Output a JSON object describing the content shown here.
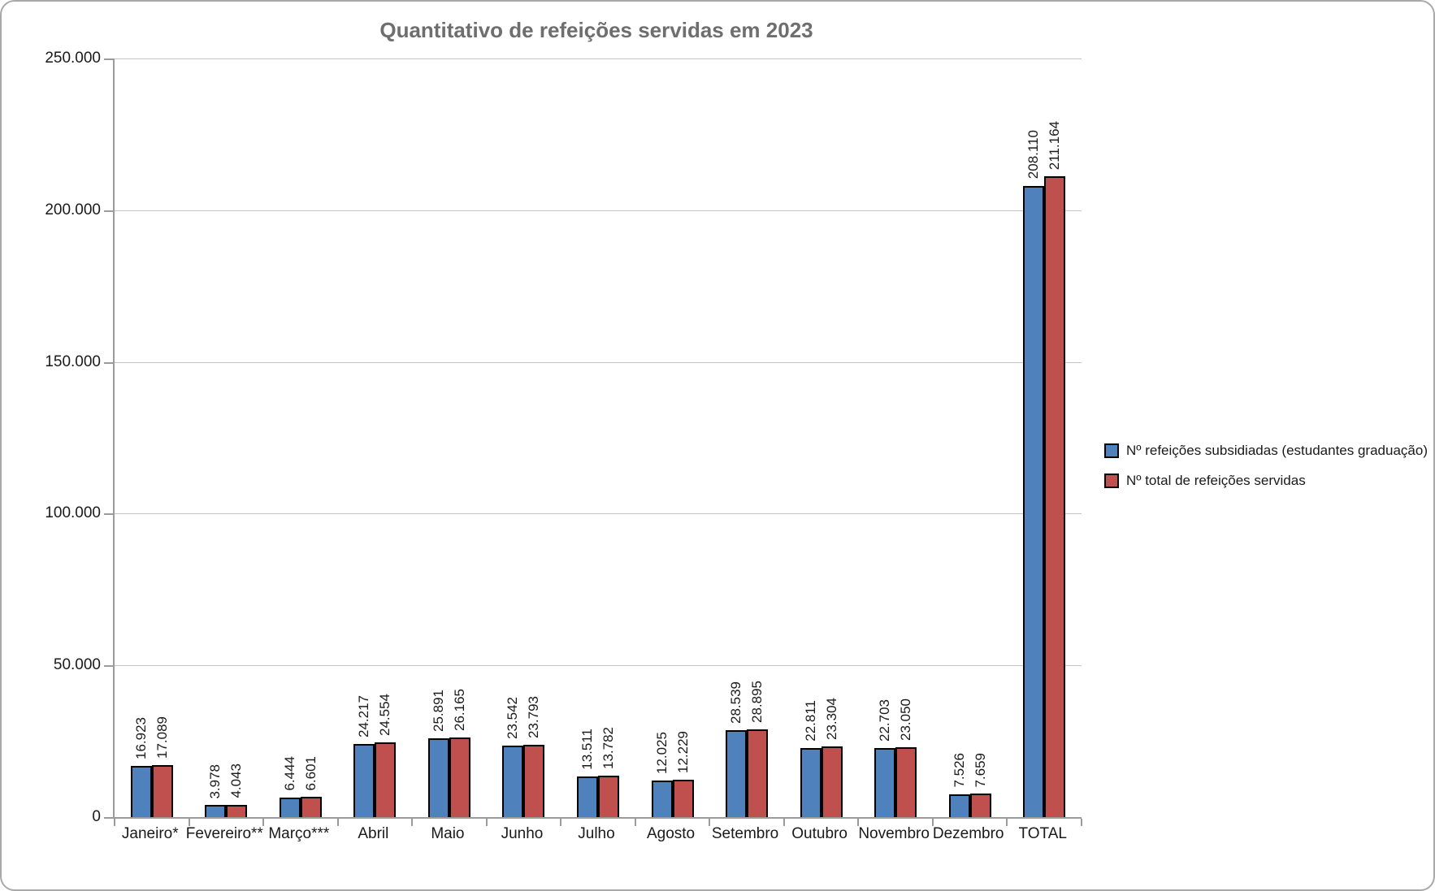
{
  "chart_data": {
    "type": "bar",
    "title": "Quantitativo de refeições servidas em 2023",
    "categories": [
      "Janeiro*",
      "Fevereiro**",
      "Março***",
      "Abril",
      "Maio",
      "Junho",
      "Julho",
      "Agosto",
      "Setembro",
      "Outubro",
      "Novembro",
      "Dezembro",
      "TOTAL"
    ],
    "series": [
      {
        "name": "Nº refeições subsidiadas (estudantes graduação)",
        "color": "#4F81BD",
        "values": [
          16923,
          3978,
          6444,
          24217,
          25891,
          23542,
          13511,
          12025,
          28539,
          22811,
          22703,
          7526,
          208110
        ],
        "labels": [
          "16.923",
          "3.978",
          "6.444",
          "24.217",
          "25.891",
          "23.542",
          "13.511",
          "12.025",
          "28.539",
          "22.811",
          "22.703",
          "7.526",
          "208.110"
        ]
      },
      {
        "name": "Nº total de refeições servidas",
        "color": "#C0504D",
        "values": [
          17089,
          4043,
          6601,
          24554,
          26165,
          23793,
          13782,
          12229,
          28895,
          23304,
          23050,
          7659,
          211164
        ],
        "labels": [
          "17.089",
          "4.043",
          "6.601",
          "24.554",
          "26.165",
          "23.793",
          "13.782",
          "12.229",
          "28.895",
          "23.304",
          "23.050",
          "7.659",
          "211.164"
        ]
      }
    ],
    "y_axis": {
      "min": 0,
      "max": 250000,
      "tick_interval": 50000,
      "tick_labels": [
        "0",
        "50.000",
        "100.000",
        "150.000",
        "200.000",
        "250.000"
      ]
    },
    "grid": true,
    "legend_position": "right",
    "bar_border_color": "#000000",
    "data_label_rotation": 90
  }
}
